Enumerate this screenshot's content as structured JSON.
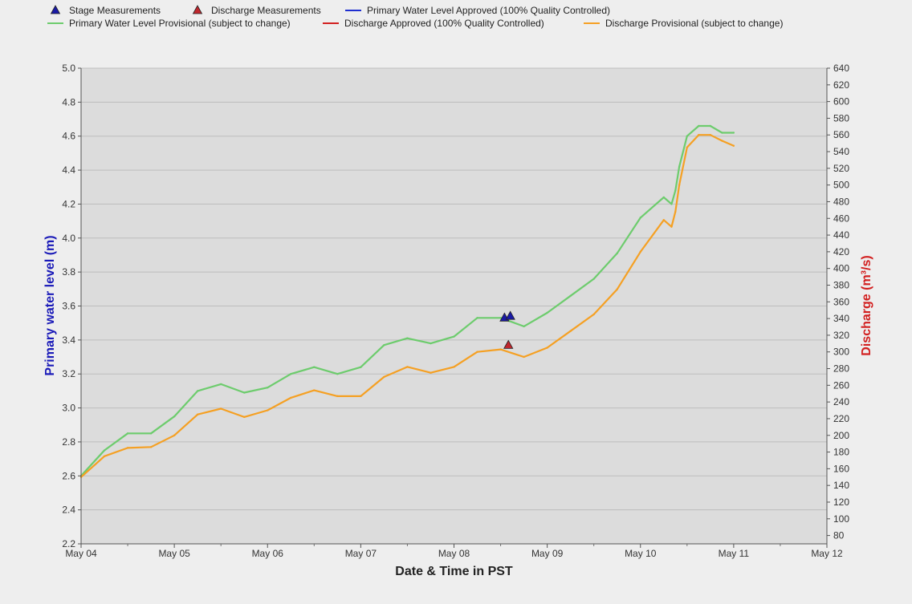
{
  "chart_data": {
    "type": "line",
    "xlabel": "Date & Time in PST",
    "ylabel_left": "Primary water level (m)",
    "ylabel_right": "Discharge (m³/s)",
    "x_ticks": [
      "May 04",
      "May 05",
      "May 06",
      "May 07",
      "May 08",
      "May 09",
      "May 10",
      "May 11",
      "May 12"
    ],
    "xlim": [
      "2024-05-04",
      "2024-05-12"
    ],
    "ylim_left": [
      2.2,
      5.0
    ],
    "ylim_right": [
      70,
      640
    ],
    "yticks_left": [
      2.2,
      2.4,
      2.6,
      2.8,
      3.0,
      3.2,
      3.4,
      3.6,
      3.8,
      4.0,
      4.2,
      4.4,
      4.6,
      4.8,
      5.0
    ],
    "yticks_right": [
      80,
      100,
      120,
      140,
      160,
      180,
      200,
      220,
      240,
      260,
      280,
      300,
      320,
      340,
      360,
      380,
      400,
      420,
      440,
      460,
      480,
      500,
      520,
      540,
      560,
      580,
      600,
      620,
      640
    ],
    "grid": true,
    "legend_position": "top",
    "legend": [
      {
        "label": "Stage Measurements",
        "kind": "triangle",
        "color": "#1a1aa6"
      },
      {
        "label": "Discharge Measurements",
        "kind": "triangle",
        "color": "#c0272d"
      },
      {
        "label": "Primary Water Level Approved (100% Quality Controlled)",
        "kind": "line",
        "color": "#1f2fd0"
      },
      {
        "label": "Primary Water Level Provisional (subject to change)",
        "kind": "line",
        "color": "#6dcc6d"
      },
      {
        "label": "Discharge Approved (100% Quality Controlled)",
        "kind": "line",
        "color": "#d21f1f"
      },
      {
        "label": "Discharge Provisional (subject to change)",
        "kind": "line",
        "color": "#f5a023"
      }
    ],
    "series": [
      {
        "name": "Primary Water Level Provisional (subject to change)",
        "axis": "left",
        "color": "#6dcc6d",
        "x": [
          "2024-05-04 00:00",
          "2024-05-04 06:00",
          "2024-05-04 12:00",
          "2024-05-04 18:00",
          "2024-05-05 00:00",
          "2024-05-05 06:00",
          "2024-05-05 12:00",
          "2024-05-05 18:00",
          "2024-05-06 00:00",
          "2024-05-06 06:00",
          "2024-05-06 12:00",
          "2024-05-06 18:00",
          "2024-05-07 00:00",
          "2024-05-07 06:00",
          "2024-05-07 12:00",
          "2024-05-07 18:00",
          "2024-05-08 00:00",
          "2024-05-08 06:00",
          "2024-05-08 12:00",
          "2024-05-08 18:00",
          "2024-05-09 00:00",
          "2024-05-09 06:00",
          "2024-05-09 12:00",
          "2024-05-09 18:00",
          "2024-05-10 00:00",
          "2024-05-10 06:00",
          "2024-05-10 08:00",
          "2024-05-10 09:00",
          "2024-05-10 10:00",
          "2024-05-10 12:00",
          "2024-05-10 15:00",
          "2024-05-10 18:00",
          "2024-05-10 21:00",
          "2024-05-11 00:00"
        ],
        "values": [
          2.6,
          2.75,
          2.85,
          2.85,
          2.95,
          3.1,
          3.14,
          3.09,
          3.12,
          3.2,
          3.24,
          3.2,
          3.24,
          3.37,
          3.41,
          3.38,
          3.42,
          3.53,
          3.53,
          3.48,
          3.56,
          3.66,
          3.76,
          3.91,
          4.12,
          4.24,
          4.2,
          4.28,
          4.42,
          4.6,
          4.66,
          4.66,
          4.62,
          4.62
        ]
      },
      {
        "name": "Discharge Provisional (subject to change)",
        "axis": "right",
        "color": "#f5a023",
        "x": [
          "2024-05-04 00:00",
          "2024-05-04 06:00",
          "2024-05-04 12:00",
          "2024-05-04 18:00",
          "2024-05-05 00:00",
          "2024-05-05 06:00",
          "2024-05-05 12:00",
          "2024-05-05 18:00",
          "2024-05-06 00:00",
          "2024-05-06 06:00",
          "2024-05-06 12:00",
          "2024-05-06 18:00",
          "2024-05-07 00:00",
          "2024-05-07 06:00",
          "2024-05-07 12:00",
          "2024-05-07 18:00",
          "2024-05-08 00:00",
          "2024-05-08 06:00",
          "2024-05-08 12:00",
          "2024-05-08 18:00",
          "2024-05-09 00:00",
          "2024-05-09 06:00",
          "2024-05-09 12:00",
          "2024-05-09 18:00",
          "2024-05-10 00:00",
          "2024-05-10 06:00",
          "2024-05-10 08:00",
          "2024-05-10 09:00",
          "2024-05-10 10:00",
          "2024-05-10 12:00",
          "2024-05-10 15:00",
          "2024-05-10 18:00",
          "2024-05-10 21:00",
          "2024-05-11 00:00"
        ],
        "values": [
          150,
          175,
          185,
          186,
          200,
          225,
          232,
          222,
          230,
          245,
          254,
          247,
          247,
          270,
          282,
          275,
          282,
          300,
          303,
          294,
          305,
          325,
          345,
          375,
          420,
          458,
          450,
          468,
          500,
          545,
          560,
          560,
          553,
          547
        ]
      }
    ],
    "markers": [
      {
        "name": "Stage Measurements",
        "axis": "left",
        "color": "#1a1aa6",
        "x": [
          "2024-05-08 13:00",
          "2024-05-08 14:30"
        ],
        "values": [
          3.53,
          3.54
        ]
      },
      {
        "name": "Discharge Measurements",
        "axis": "right",
        "color": "#c0272d",
        "x": [
          "2024-05-08 14:00"
        ],
        "values": [
          308
        ]
      }
    ]
  }
}
